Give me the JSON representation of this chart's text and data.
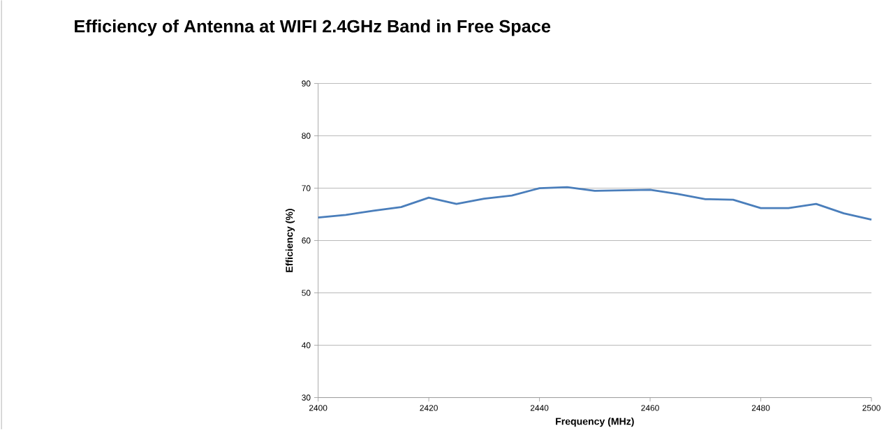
{
  "chart_data": {
    "type": "line",
    "title": "Efficiency of Antenna at WIFI 2.4GHz Band in Free Space",
    "xlabel": "Frequency (MHz)",
    "ylabel": "Efficiency  (%)",
    "x": [
      2400,
      2405,
      2410,
      2415,
      2420,
      2425,
      2430,
      2435,
      2440,
      2445,
      2450,
      2455,
      2460,
      2465,
      2470,
      2475,
      2480,
      2485,
      2490,
      2495,
      2500
    ],
    "values": [
      64.4,
      64.9,
      65.7,
      66.4,
      68.2,
      67.0,
      68.0,
      68.6,
      70.0,
      70.2,
      69.5,
      69.6,
      69.7,
      68.9,
      67.9,
      67.8,
      66.2,
      66.2,
      67.0,
      65.2,
      64.0
    ],
    "color": "#4a7ebb",
    "xlim": [
      2400,
      2500
    ],
    "ylim": [
      30,
      90
    ],
    "xticks": [
      2400,
      2420,
      2440,
      2460,
      2480,
      2500
    ],
    "yticks": [
      30,
      40,
      50,
      60,
      70,
      80,
      90
    ],
    "grid": "y"
  }
}
